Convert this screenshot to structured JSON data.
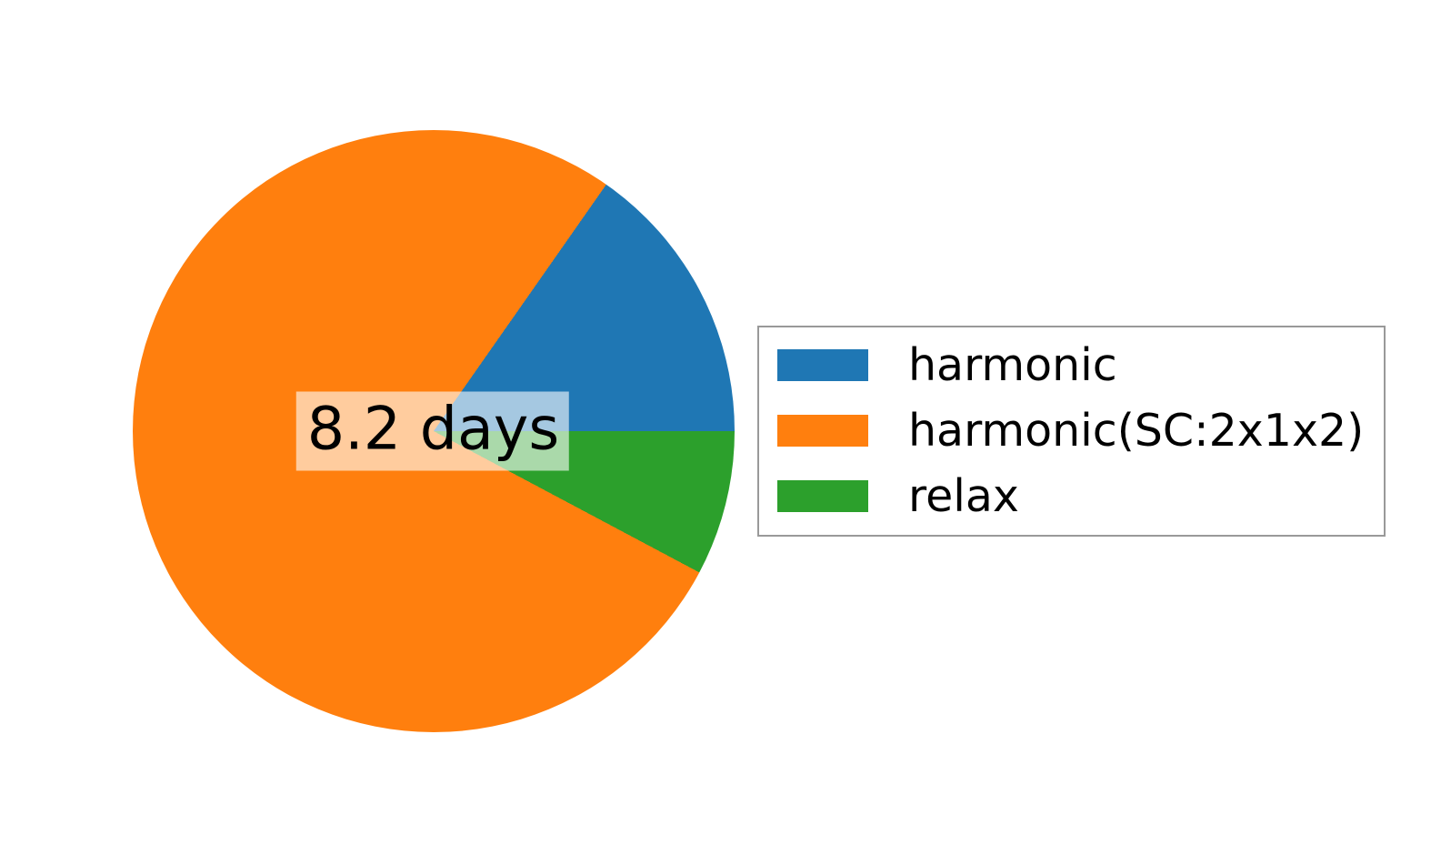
{
  "chart_data": {
    "type": "pie",
    "title": "",
    "center_label": "8.2 days",
    "legend_position": "center right",
    "angle_convention": "degrees counterclockwise from 3 o'clock",
    "slices": [
      {
        "label": "harmonic",
        "color": "#1f77b4",
        "start_angle_deg": 0,
        "end_angle_deg": 55,
        "percent_est": 15.3
      },
      {
        "label": "harmonic(SC:2x1x2)",
        "color": "#ff7f0e",
        "start_angle_deg": 55,
        "end_angle_deg": 332,
        "percent_est": 76.9
      },
      {
        "label": "relax",
        "color": "#2ca02c",
        "start_angle_deg": 332,
        "end_angle_deg": 360,
        "percent_est": 7.8
      }
    ]
  },
  "colors": {
    "background": "#ffffff",
    "text": "#000000",
    "center_label_bg": "rgba(255,255,255,0.6)",
    "legend_border": "#999999"
  }
}
